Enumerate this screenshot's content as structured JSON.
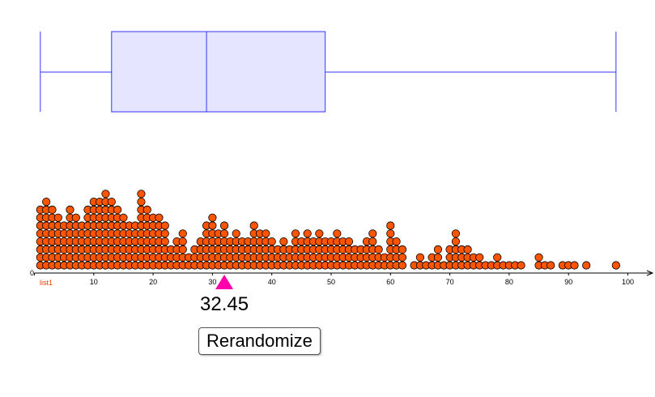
{
  "boxplot": {
    "min": 1,
    "q1": 13,
    "median": 29,
    "q3": 49,
    "max": 98,
    "stroke_color": "#3333ff",
    "fill_color": "#e5e5ff"
  },
  "dotplot": {
    "list_label": "list1",
    "dot_color": "#ff5500",
    "dot_stroke": "#000000",
    "counts": {
      "1": 8,
      "2": 9,
      "3": 8,
      "4": 7,
      "5": 6,
      "6": 8,
      "7": 7,
      "8": 6,
      "9": 8,
      "10": 9,
      "11": 9,
      "12": 10,
      "13": 9,
      "14": 8,
      "15": 7,
      "16": 6,
      "17": 6,
      "18": 10,
      "19": 8,
      "20": 7,
      "21": 7,
      "22": 6,
      "23": 3,
      "24": 4,
      "25": 5,
      "26": 2,
      "27": 3,
      "28": 4,
      "29": 6,
      "30": 7,
      "31": 5,
      "32": 6,
      "33": 4,
      "34": 5,
      "35": 4,
      "36": 4,
      "37": 6,
      "38": 5,
      "39": 5,
      "40": 4,
      "41": 3,
      "42": 4,
      "43": 3,
      "44": 5,
      "45": 4,
      "46": 5,
      "47": 4,
      "48": 5,
      "49": 4,
      "50": 4,
      "51": 5,
      "52": 4,
      "53": 4,
      "54": 3,
      "55": 3,
      "56": 4,
      "57": 5,
      "58": 3,
      "59": 2,
      "60": 6,
      "61": 4,
      "62": 3,
      "64": 1,
      "65": 2,
      "66": 1,
      "67": 2,
      "68": 3,
      "69": 1,
      "70": 3,
      "71": 5,
      "72": 3,
      "73": 3,
      "74": 2,
      "75": 2,
      "76": 1,
      "77": 1,
      "78": 2,
      "79": 1,
      "80": 1,
      "81": 1,
      "82": 1,
      "85": 2,
      "86": 1,
      "87": 1,
      "89": 1,
      "90": 1,
      "91": 1,
      "93": 1,
      "98": 1
    }
  },
  "axis": {
    "min": 0,
    "max": 100,
    "ticks": [
      {
        "value": 0,
        "label": "0"
      },
      {
        "value": 10,
        "label": "10"
      },
      {
        "value": 20,
        "label": "20"
      },
      {
        "value": 30,
        "label": "30"
      },
      {
        "value": 40,
        "label": "40"
      },
      {
        "value": 50,
        "label": "50"
      },
      {
        "value": 60,
        "label": "60"
      },
      {
        "value": 70,
        "label": "70"
      },
      {
        "value": 80,
        "label": "80"
      },
      {
        "value": 90,
        "label": "90"
      },
      {
        "value": 100,
        "label": "100"
      }
    ]
  },
  "slider": {
    "value": 32,
    "color": "#ff00aa"
  },
  "mean_display": "32.45",
  "rerandomize_label": "Rerandomize"
}
